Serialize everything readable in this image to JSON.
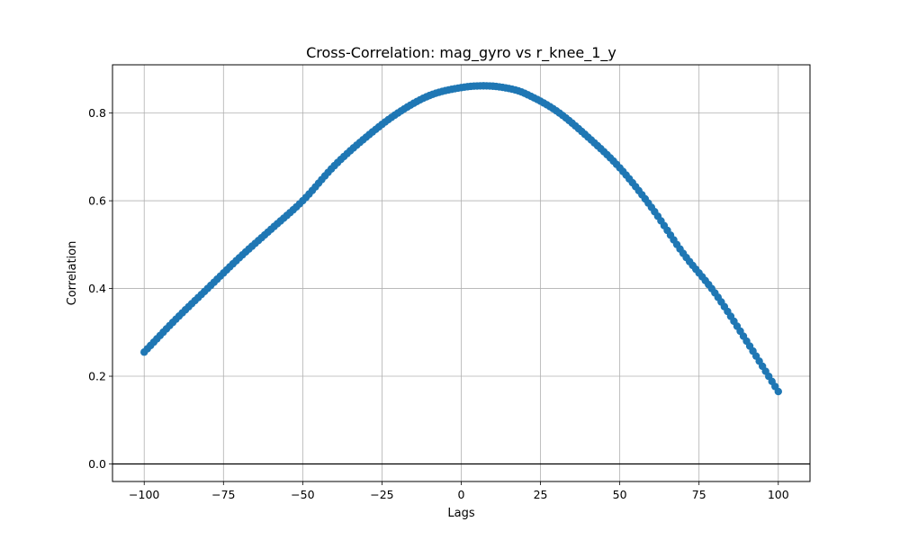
{
  "chart_data": {
    "type": "scatter",
    "title": "Cross-Correlation: mag_gyro vs r_knee_1_y",
    "xlabel": "Lags",
    "ylabel": "Correlation",
    "xlim": [
      -110,
      110
    ],
    "ylim": [
      -0.04,
      0.91
    ],
    "xticks": [
      -100,
      -75,
      -50,
      -25,
      0,
      25,
      50,
      75,
      100
    ],
    "xtick_labels": [
      "−100",
      "−75",
      "−50",
      "−25",
      "0",
      "25",
      "50",
      "75",
      "100"
    ],
    "yticks": [
      0.0,
      0.2,
      0.4,
      0.6,
      0.8
    ],
    "ytick_labels": [
      "0.0",
      "0.2",
      "0.4",
      "0.6",
      "0.8"
    ],
    "grid": true,
    "zero_line": true,
    "marker_color": "#1f77b4",
    "series": [
      {
        "x": [
          -100,
          -90,
          -80,
          -70,
          -60,
          -50,
          -40,
          -30,
          -20,
          -10,
          0,
          8,
          15,
          20,
          30,
          40,
          50,
          60,
          70,
          80,
          90,
          100
        ],
        "y": [
          0.255,
          0.33,
          0.4,
          0.47,
          0.535,
          0.6,
          0.68,
          0.745,
          0.8,
          0.84,
          0.858,
          0.862,
          0.856,
          0.845,
          0.805,
          0.745,
          0.675,
          0.585,
          0.48,
          0.39,
          0.28,
          0.165
        ]
      }
    ]
  }
}
